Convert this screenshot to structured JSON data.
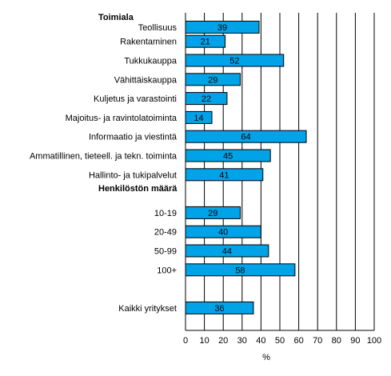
{
  "chart_data": {
    "type": "bar",
    "orientation": "horizontal",
    "xlabel": "%",
    "xlim": [
      0,
      100
    ],
    "xticks": [
      0,
      10,
      20,
      30,
      40,
      50,
      60,
      70,
      80,
      90,
      100
    ],
    "grid": "vertical",
    "colors": {
      "bar": "#00A2E8",
      "bar_border": "#000000",
      "grid": "#000000"
    },
    "groups": [
      {
        "heading": "Toimiala",
        "items": [
          {
            "label": "Teollisuus",
            "value": 39
          },
          {
            "label": "Rakentaminen",
            "value": 21
          },
          {
            "label": "Tukkukauppa",
            "value": 52
          },
          {
            "label": "Vähittäiskauppa",
            "value": 29
          },
          {
            "label": "Kuljetus ja varastointi",
            "value": 22
          },
          {
            "label": "Majoitus- ja ravintolatoiminta",
            "value": 14
          },
          {
            "label": "Informaatio ja viestintä",
            "value": 64
          },
          {
            "label": "Ammatillinen, tieteell. ja tekn. toiminta",
            "value": 45
          },
          {
            "label": "Hallinto- ja tukipalvelut",
            "value": 41
          }
        ]
      },
      {
        "heading": "Henkilöstön määrä",
        "items": [
          {
            "label": "10-19",
            "value": 29
          },
          {
            "label": "20-49",
            "value": 40
          },
          {
            "label": "50-99",
            "value": 44
          },
          {
            "label": "100+",
            "value": 58
          }
        ]
      },
      {
        "heading": "",
        "items": [
          {
            "label": "Kaikki yritykset",
            "value": 36
          }
        ]
      }
    ]
  }
}
